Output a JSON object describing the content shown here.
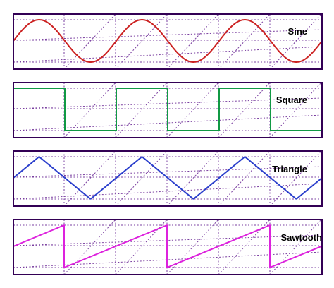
{
  "panels": [
    {
      "id": "sine",
      "label": "Sine",
      "wave": "sine",
      "color": "#cc2222"
    },
    {
      "id": "square",
      "label": "Square",
      "wave": "square",
      "color": "#119944"
    },
    {
      "id": "triangle",
      "label": "Triangle",
      "wave": "triangle",
      "color": "#2b3fcc"
    },
    {
      "id": "sawtooth",
      "label": "Sawtooth",
      "wave": "sawtooth",
      "color": "#dd22dd"
    }
  ],
  "frame_color": "#330055",
  "grid_color": "#7a3fa0",
  "periods_shown": 3
}
